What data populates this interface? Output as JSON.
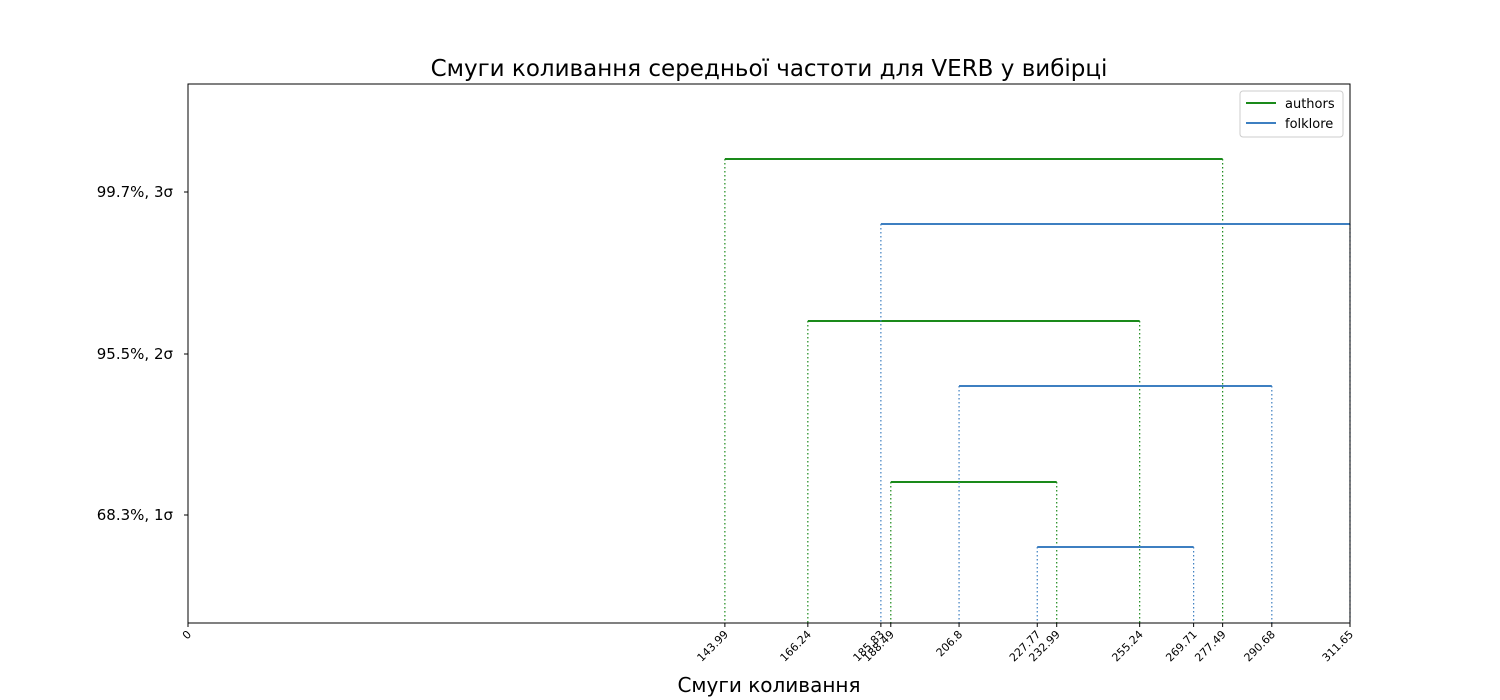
{
  "chart_data": {
    "type": "interval",
    "title": "Смуги коливання середньої частоти для VERB у вибірці",
    "xlabel": "Смуги коливання",
    "ylabel": "",
    "xlim": [
      0,
      311.65
    ],
    "x_ticks": [
      "0",
      "143.99",
      "166.24",
      "185.83",
      "188.49",
      "206.8",
      "227.77",
      "232.99",
      "255.24",
      "269.71",
      "277.49",
      "290.68",
      "311.65"
    ],
    "x_tick_values": [
      0,
      143.99,
      166.24,
      185.83,
      188.49,
      206.8,
      227.77,
      232.99,
      255.24,
      269.71,
      277.49,
      290.68,
      311.65
    ],
    "y_ticks": [
      "99.7%,  3σ",
      "95.5%,  2σ",
      "68.3%,  1σ"
    ],
    "legend": {
      "position": "top-right",
      "entries": [
        "authors",
        "folklore"
      ]
    },
    "grid": false,
    "series": [
      {
        "name": "authors",
        "color": "#1a8a1a",
        "intervals": [
          {
            "level": "99.7%,  3σ",
            "low": 143.99,
            "high": 277.49
          },
          {
            "level": "95.5%,  2σ",
            "low": 166.24,
            "high": 255.24
          },
          {
            "level": "68.3%,  1σ",
            "low": 188.49,
            "high": 232.99
          }
        ]
      },
      {
        "name": "folklore",
        "color": "#3d7fc1",
        "intervals": [
          {
            "level": "99.7%,  3σ",
            "low": 185.83,
            "high": 311.65
          },
          {
            "level": "95.5%,  2σ",
            "low": 206.8,
            "high": 290.68
          },
          {
            "level": "68.3%,  1σ",
            "low": 227.77,
            "high": 269.71
          }
        ]
      }
    ]
  }
}
